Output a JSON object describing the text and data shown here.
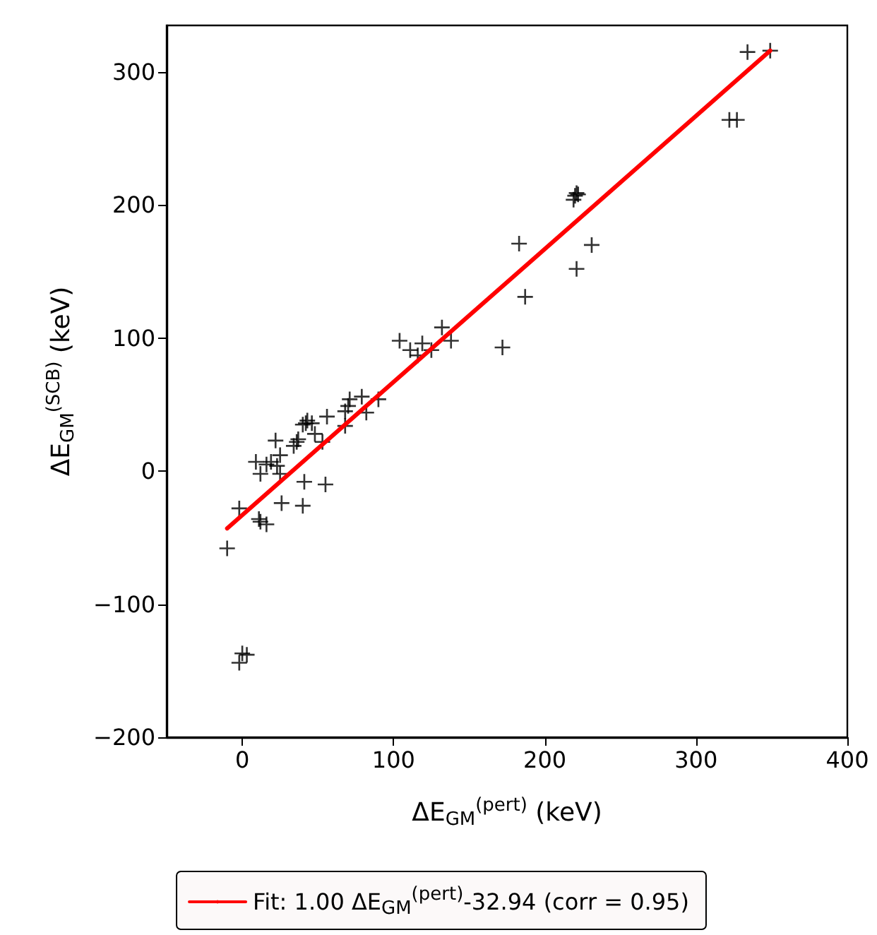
{
  "chart_data": {
    "type": "scatter",
    "xlabel": "ΔE$_{GM}$$^{(pert)}$ (keV)",
    "ylabel": "ΔE$_{GM}$$^{(SCB)}$ (keV)",
    "xlim": [
      -50,
      400
    ],
    "xticks": [
      0,
      100,
      200,
      300,
      400
    ],
    "ylim": [
      -200,
      335
    ],
    "yticks": [
      -200,
      -100,
      0,
      100,
      200,
      300
    ],
    "grid": false,
    "legend": "bottom",
    "marker": "cross",
    "series": [
      {
        "color": "#000000",
        "x": [
          334,
          349,
          322,
          327,
          221,
          219,
          220,
          222,
          183,
          231,
          221,
          187,
          172,
          132,
          138,
          104,
          111,
          119,
          125,
          116,
          90,
          82,
          68,
          79,
          71,
          70,
          68,
          56,
          43,
          42,
          46,
          40,
          48,
          53,
          36,
          34,
          37,
          22,
          9,
          19,
          25,
          23,
          16,
          12,
          25,
          41,
          55,
          26,
          40,
          -2,
          11,
          12,
          16,
          -10,
          0,
          3,
          -2
        ],
        "values": [
          315,
          316,
          264,
          264,
          209,
          204,
          207,
          208,
          171,
          170,
          152,
          131,
          93,
          108,
          98,
          98,
          91,
          96,
          91,
          87,
          54,
          44,
          34,
          56,
          54,
          49,
          45,
          41,
          38,
          36,
          36,
          35,
          28,
          22,
          22,
          19,
          24,
          23,
          7,
          7,
          12,
          4,
          5,
          -2,
          -2,
          -8,
          -10,
          -24,
          -26,
          -28,
          -36,
          -38,
          -40,
          -58,
          -137,
          -138,
          -144
        ]
      },
      {
        "type": "line",
        "name": "Fit: 1.00 ΔE$_{GM}$$^{(pert)}$-32.94 (corr = 0.95)",
        "color": "#ff0000",
        "marker": "none",
        "line_style": "solid",
        "x": [
          -10,
          349
        ],
        "values": [
          -43,
          316
        ]
      }
    ]
  }
}
